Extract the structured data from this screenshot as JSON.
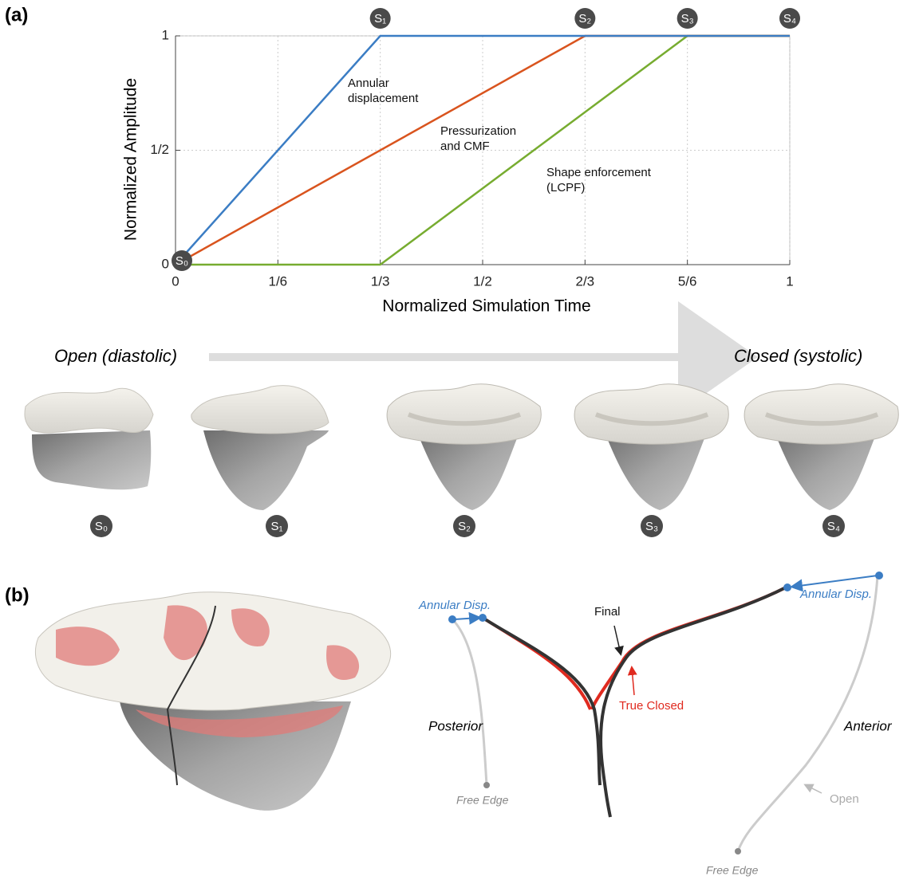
{
  "chart_data": {
    "type": "line",
    "panel_label": "(a)",
    "x_label": "Normalized Simulation Time",
    "y_label": "Normalized Amplitude",
    "xlim": [
      0,
      1
    ],
    "ylim": [
      0,
      1
    ],
    "xticks": [
      0,
      {
        "value": 0.16666666666666666,
        "label": "1/6"
      },
      {
        "value": 0.3333333333333333,
        "label": "1/3"
      },
      {
        "value": 0.5,
        "label": "1/2"
      },
      {
        "value": 0.6666666666666666,
        "label": "2/3"
      },
      {
        "value": 0.8333333333333334,
        "label": "5/6"
      },
      1
    ],
    "yticks": [
      0,
      {
        "value": 0.5,
        "label": "1/2"
      },
      1
    ],
    "grid": true,
    "series": [
      {
        "name": "Annular displacement",
        "color": "#3b7dc4",
        "x": [
          0,
          0.3333333333333333,
          1
        ],
        "values": [
          0,
          1,
          1
        ]
      },
      {
        "name": "Pressurization and CMF",
        "color": "#d9541e",
        "x": [
          0,
          0.6666666666666666,
          1
        ],
        "values": [
          0,
          1,
          1
        ]
      },
      {
        "name": "Shape enforcement (LCPF)",
        "color": "#77ac30",
        "x": [
          0,
          0.3333333333333333,
          0.8333333333333334,
          1
        ],
        "values": [
          0,
          0,
          1,
          1
        ]
      }
    ],
    "stage_markers": [
      {
        "label": "S₀",
        "x": 0,
        "y": 0
      },
      {
        "label": "S₁",
        "x": 0.3333333333333333,
        "y": 1
      },
      {
        "label": "S₂",
        "x": 0.6666666666666666,
        "y": 1
      },
      {
        "label": "S₃",
        "x": 0.8333333333333334,
        "y": 1
      },
      {
        "label": "S₄",
        "x": 1,
        "y": 1
      }
    ]
  },
  "strip": {
    "start_label": "Open (diastolic)",
    "end_label": "Closed (systolic)",
    "stages": [
      "S₀",
      "S₁",
      "S₂",
      "S₃",
      "S₄"
    ]
  },
  "panel_b": {
    "panel_label": "(b)",
    "annular_left": "Annular Disp.",
    "annular_right": "Annular Disp.",
    "final": "Final",
    "true_closed": "True Closed",
    "posterior": "Posterior",
    "anterior": "Anterior",
    "free_edge_left": "Free Edge",
    "free_edge_right": "Free Edge",
    "open": "Open"
  }
}
